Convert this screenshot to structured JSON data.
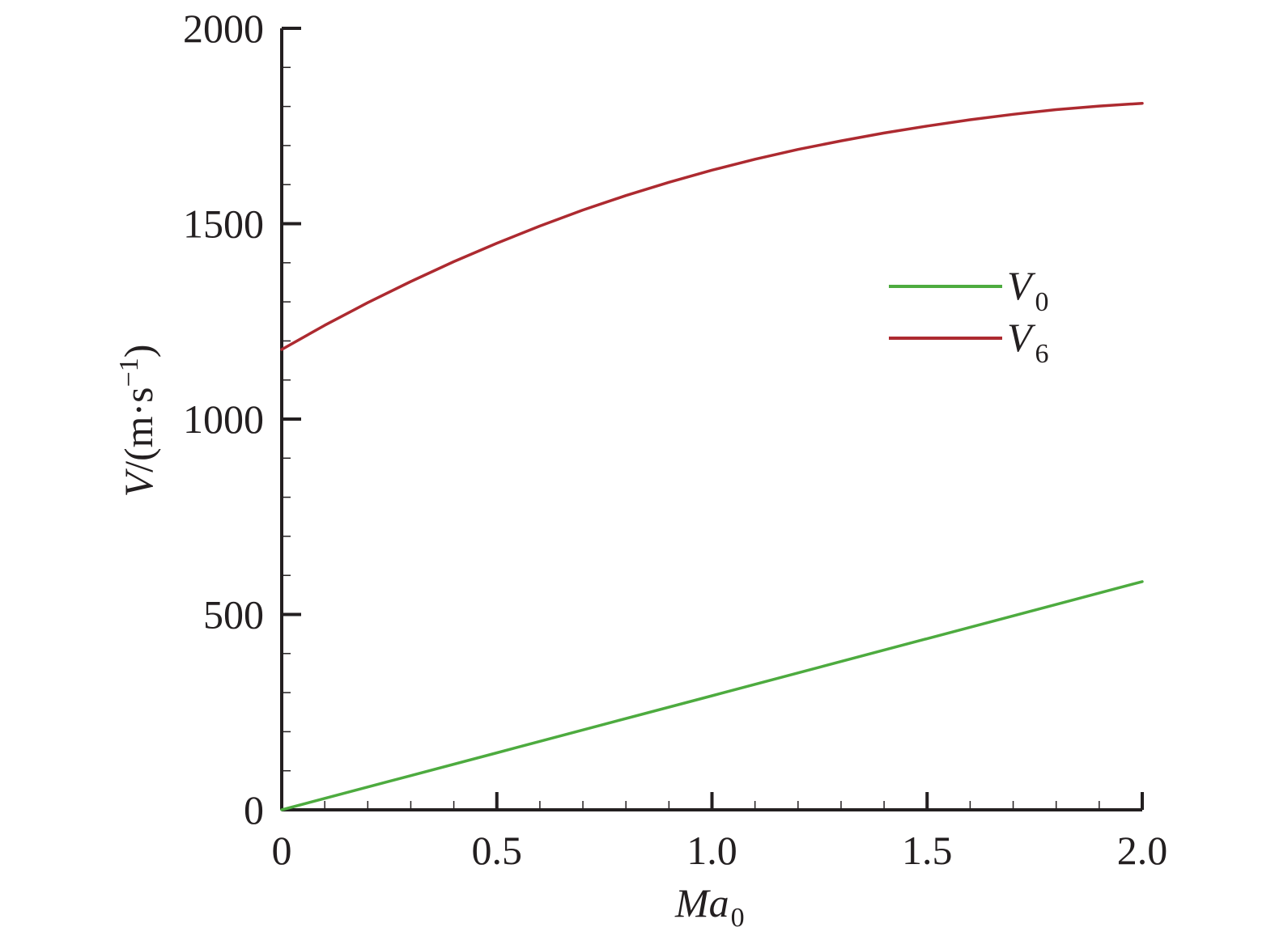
{
  "chart_data": {
    "type": "line",
    "xlabel": {
      "main": "Ma",
      "sub": "0"
    },
    "ylabel": {
      "main": "V",
      "unit_open": "/(m·s",
      "sup": "−1",
      "unit_close": ")"
    },
    "xlim": [
      0,
      2.0
    ],
    "ylim": [
      0,
      2000
    ],
    "x_ticks": [
      "0",
      "0.5",
      "1.0",
      "1.5",
      "2.0"
    ],
    "x_tick_values": [
      0,
      0.5,
      1.0,
      1.5,
      2.0
    ],
    "x_minor_step": 0.1,
    "y_ticks": [
      "0",
      "500",
      "1000",
      "1500",
      "2000"
    ],
    "y_tick_values": [
      0,
      500,
      1000,
      1500,
      2000
    ],
    "y_minor_step": 100,
    "grid": false,
    "legend_position": "center-right",
    "series": [
      {
        "name": {
          "main": "V",
          "sub": "0"
        },
        "color": "#4dab3f",
        "x": [
          0,
          0.25,
          0.5,
          0.75,
          1.0,
          1.25,
          1.5,
          1.75,
          2.0
        ],
        "values": [
          0,
          73,
          146,
          219,
          292,
          365,
          438,
          511,
          584
        ]
      },
      {
        "name": {
          "main": "V",
          "sub": "6"
        },
        "color": "#ad2a30",
        "x": [
          0,
          0.1,
          0.2,
          0.3,
          0.4,
          0.5,
          0.6,
          0.7,
          0.8,
          0.9,
          1.0,
          1.1,
          1.2,
          1.3,
          1.4,
          1.5,
          1.6,
          1.7,
          1.8,
          1.9,
          2.0
        ],
        "values": [
          1178,
          1240,
          1298,
          1352,
          1403,
          1450,
          1494,
          1535,
          1572,
          1606,
          1637,
          1665,
          1690,
          1712,
          1732,
          1750,
          1766,
          1780,
          1792,
          1801,
          1808
        ]
      }
    ]
  }
}
